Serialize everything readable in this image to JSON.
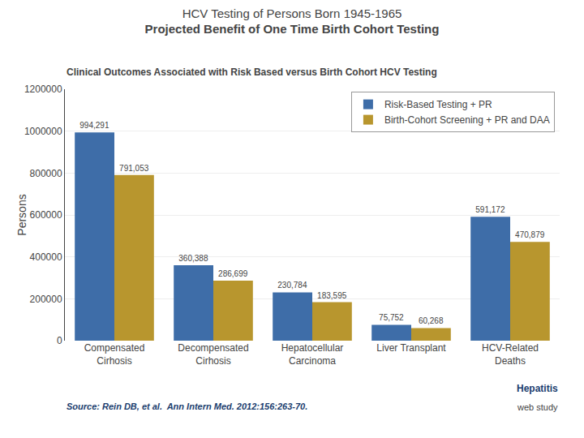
{
  "chart_data": {
    "type": "bar",
    "title": "HCV Testing of Persons Born 1945-1965\nProjected Benefit of One Time Birth Cohort Testing",
    "subtitle": "Clinical Outcomes Associated with Risk Based versus Birth Cohort HCV Testing",
    "categories": [
      "Compensated\nCirhosis",
      "Decompensated\nCirhosis",
      "Hepatocellular\nCarcinoma",
      "Liver Transplant",
      "HCV-Related\nDeaths"
    ],
    "series": [
      {
        "name": "Risk-Based Testing + PR",
        "color": "#3E6DA8",
        "values": [
          994291,
          360388,
          230784,
          75752,
          591172
        ],
        "value_labels": [
          "994,291",
          "360,388",
          "230,784",
          "75,752",
          "591,172"
        ]
      },
      {
        "name": "Birth-Cohort Screening + PR and DAA",
        "color": "#B8962E",
        "values": [
          791053,
          286699,
          183595,
          60268,
          470879
        ],
        "value_labels": [
          "791,053",
          "286,699",
          "183,595",
          "60,268",
          "470,879"
        ]
      }
    ],
    "ylabel": "Persons",
    "ylim": [
      0,
      1200000
    ],
    "yticks": [
      0,
      200000,
      400000,
      600000,
      800000,
      1000000,
      1200000
    ],
    "grid": true,
    "legend": "upper right",
    "data_labels": true,
    "annotations": [
      "Source: Rein DB, et al.  Ann Intern Med. 2012:156:263-70.",
      "Hepatitis",
      "web study"
    ]
  }
}
